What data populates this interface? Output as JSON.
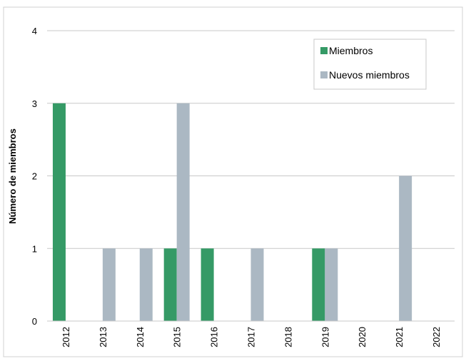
{
  "chart_data": {
    "type": "bar",
    "y_label": "Número de miembros",
    "categories": [
      "2012",
      "2013",
      "2014",
      "2015",
      "2016",
      "2017",
      "2018",
      "2019",
      "2020",
      "2021",
      "2022"
    ],
    "series": [
      {
        "name": "Miembros",
        "color": "#359a66",
        "values": [
          3,
          0,
          0,
          1,
          1,
          0,
          0,
          1,
          0,
          0,
          0
        ]
      },
      {
        "name": "Nuevos miembros",
        "color": "#abb8c3",
        "values": [
          0,
          1,
          1,
          3,
          0,
          1,
          0,
          1,
          0,
          2,
          0
        ]
      }
    ],
    "ylim": [
      0,
      4
    ],
    "yticks": [
      0,
      1,
      2,
      3,
      4
    ],
    "grid": true,
    "legend": "upper right"
  }
}
